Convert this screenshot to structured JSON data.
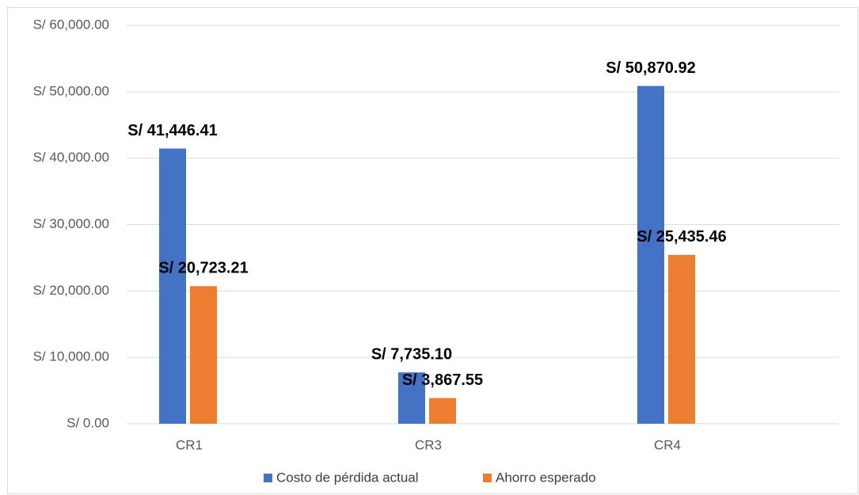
{
  "chart_data": {
    "type": "bar",
    "categories": [
      "CR1",
      "CR3",
      "CR4"
    ],
    "series": [
      {
        "name": "Costo de pérdida actual",
        "color": "#4472c4",
        "values": [
          41446.41,
          7735.1,
          50870.92
        ],
        "value_labels": [
          "S/ 41,446.41",
          "S/ 7,735.10",
          "S/ 50,870.92"
        ]
      },
      {
        "name": "Ahorro esperado",
        "color": "#ed7d31",
        "values": [
          20723.21,
          3867.55,
          25435.46
        ],
        "value_labels": [
          "S/ 20,723.21",
          "S/ 3,867.55",
          "S/ 25,435.46"
        ]
      }
    ],
    "ylim": [
      0,
      60000
    ],
    "yticks": [
      {
        "value": 0,
        "label": "S/ 0.00"
      },
      {
        "value": 10000,
        "label": "S/ 10,000.00"
      },
      {
        "value": 20000,
        "label": "S/ 20,000.00"
      },
      {
        "value": 30000,
        "label": "S/ 30,000.00"
      },
      {
        "value": 40000,
        "label": "S/ 40,000.00"
      },
      {
        "value": 50000,
        "label": "S/ 50,000.00"
      },
      {
        "value": 60000,
        "label": "S/ 60,000.00"
      }
    ],
    "grid": true,
    "legend": "bottom"
  }
}
